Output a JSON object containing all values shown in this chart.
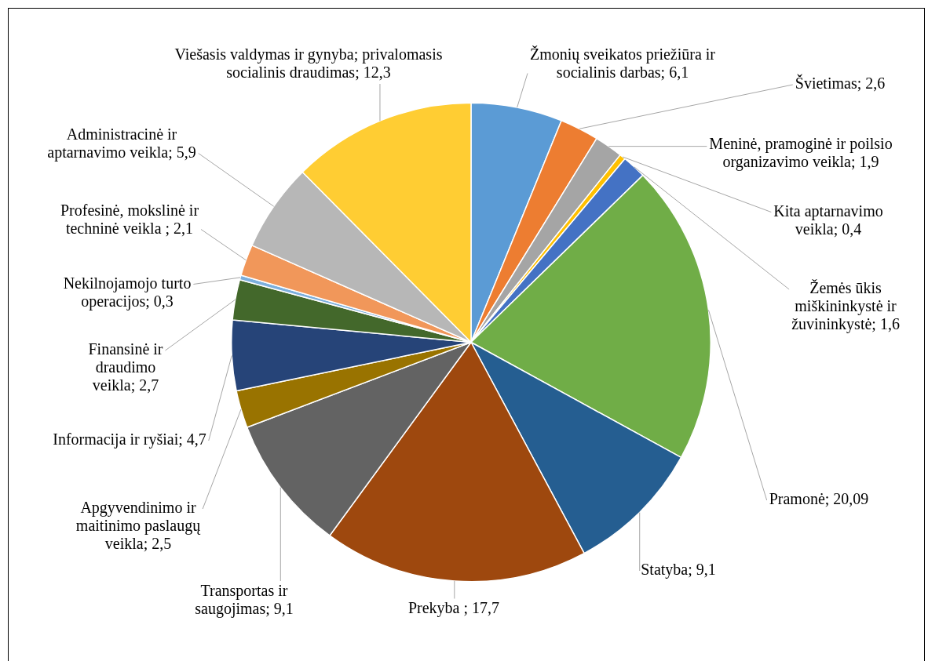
{
  "chart_data": {
    "type": "pie",
    "categories": [
      "Žmonių sveikatos priežiūra ir socialinis darbas",
      "Švietimas",
      "Meninė, pramoginė ir poilsio organizavimo veikla",
      "Kita aptarnavimo veikla",
      "Žemės ūkis miškininkystė ir žuvininkystė",
      "Pramonė",
      "Statyba",
      "Prekyba ",
      "Transportas ir saugojimas",
      "Apgyvendinimo ir maitinimo paslaugų veikla",
      "Informacija ir ryšiai",
      "Finansinė ir draudimo veikla",
      "Nekilnojamojo turto operacijos",
      "Profesinė, mokslinė ir techninė veikla ",
      "Administracinė ir aptarnavimo veikla",
      "Viešasis valdymas ir gynyba; privalomasis socialinis draudimas"
    ],
    "values": [
      6.1,
      2.6,
      1.9,
      0.4,
      1.6,
      20.09,
      9.1,
      17.7,
      9.1,
      2.5,
      4.7,
      2.7,
      0.3,
      2.1,
      5.9,
      12.3
    ],
    "value_labels": [
      "6,1",
      "2,6",
      "1,9",
      "0,4",
      "1,6",
      "20,09",
      "9,1",
      "17,7",
      "9,1",
      "2,5",
      "4,7",
      "2,7",
      "0,3",
      "2,1",
      "5,9",
      "12,3"
    ],
    "colors": [
      "#5b9bd5",
      "#ed7d31",
      "#a5a5a5",
      "#ffc000",
      "#4472c4",
      "#70ad47",
      "#255e91",
      "#9e480e",
      "#636363",
      "#997300",
      "#264478",
      "#43682b",
      "#7cafdd",
      "#f1975a",
      "#b7b7b7",
      "#ffcd33"
    ]
  }
}
